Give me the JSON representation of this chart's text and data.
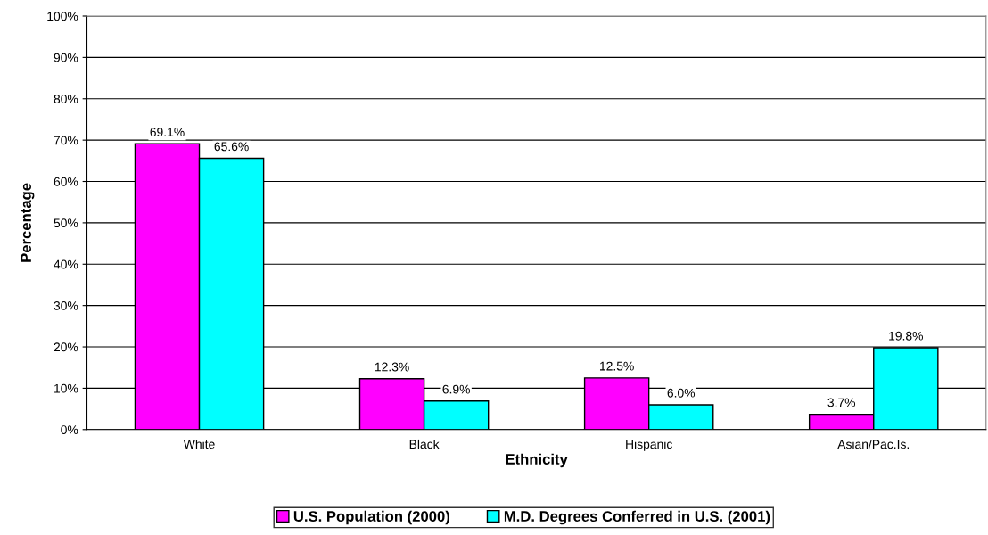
{
  "chart_data": {
    "type": "bar",
    "xlabel": "Ethnicity",
    "ylabel": "Percentage",
    "categories": [
      "White",
      "Black",
      "Hispanic",
      "Asian/Pac.Is."
    ],
    "series": [
      {
        "name": "U.S. Population (2000)",
        "color": "#ff00ff",
        "values": [
          69.1,
          12.3,
          12.5,
          3.7
        ],
        "value_labels": [
          "69.1%",
          "12.3%",
          "12.5%",
          "3.7%"
        ]
      },
      {
        "name": "M.D. Degrees Conferred in U.S. (2001)",
        "color": "#00ffff",
        "values": [
          65.6,
          6.9,
          6.0,
          19.8
        ],
        "value_labels": [
          "65.6%",
          "6.9%",
          "6.0%",
          "19.8%"
        ]
      }
    ],
    "ylim": [
      0,
      100
    ],
    "yticks": [
      {
        "value": 0,
        "label": "0%"
      },
      {
        "value": 10,
        "label": "10%"
      },
      {
        "value": 20,
        "label": "20%"
      },
      {
        "value": 30,
        "label": "30%"
      },
      {
        "value": 40,
        "label": "40%"
      },
      {
        "value": 50,
        "label": "50%"
      },
      {
        "value": 60,
        "label": "60%"
      },
      {
        "value": 70,
        "label": "70%"
      },
      {
        "value": 80,
        "label": "80%"
      },
      {
        "value": 90,
        "label": "90%"
      },
      {
        "value": 100,
        "label": "100%"
      }
    ],
    "grid": "y",
    "legend": "bottom"
  }
}
